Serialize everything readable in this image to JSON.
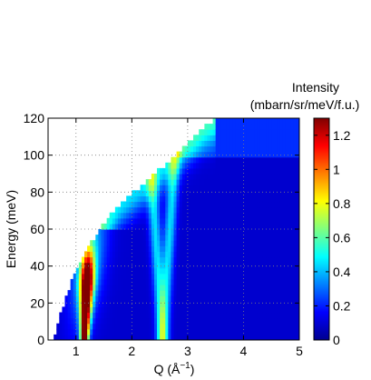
{
  "chart_data": {
    "type": "heatmap",
    "title": "",
    "xlabel": "Q (Å",
    "xlabel_superscript": "−1",
    "xlabel_close": ")",
    "ylabel": "Energy (meV)",
    "xlim": [
      0.5,
      5
    ],
    "ylim": [
      0,
      120
    ],
    "x_ticks": [
      1,
      2,
      3,
      4,
      5
    ],
    "y_ticks": [
      0,
      20,
      40,
      60,
      80,
      100,
      120
    ],
    "grid": "dotted",
    "colorbar": {
      "title": "Intensity",
      "units": "(mbarn/sr/meV/f.u.)",
      "range": [
        0,
        1.3
      ],
      "ticks": [
        0,
        0.2,
        0.4,
        0.6,
        0.8,
        1,
        1.2
      ],
      "colormap": "jet"
    },
    "kinematic_limit": [
      {
        "q": 0.6,
        "e": 0
      },
      {
        "q": 0.7,
        "e": 12
      },
      {
        "q": 0.85,
        "e": 26
      },
      {
        "q": 1.0,
        "e": 38
      },
      {
        "q": 1.2,
        "e": 50
      },
      {
        "q": 1.5,
        "e": 63
      },
      {
        "q": 1.8,
        "e": 74
      },
      {
        "q": 2.2,
        "e": 84
      },
      {
        "q": 2.6,
        "e": 95
      },
      {
        "q": 3.0,
        "e": 107
      },
      {
        "q": 3.3,
        "e": 116
      },
      {
        "q": 3.5,
        "e": 120
      }
    ],
    "features": [
      {
        "name": "",
        "q_center": 1.15,
        "width": 0.12,
        "e_range": [
          0,
          50
        ],
        "peak": 1.3
      },
      {
        "name": "",
        "q_center": 2.55,
        "width": 0.1,
        "e_range": [
          0,
          110
        ],
        "peak": 0.35
      },
      {
        "name": "",
        "q_center": 1.35,
        "width": 0.25,
        "e_range": [
          20,
          80
        ],
        "peak": 0.55
      }
    ],
    "background": 0.1
  }
}
